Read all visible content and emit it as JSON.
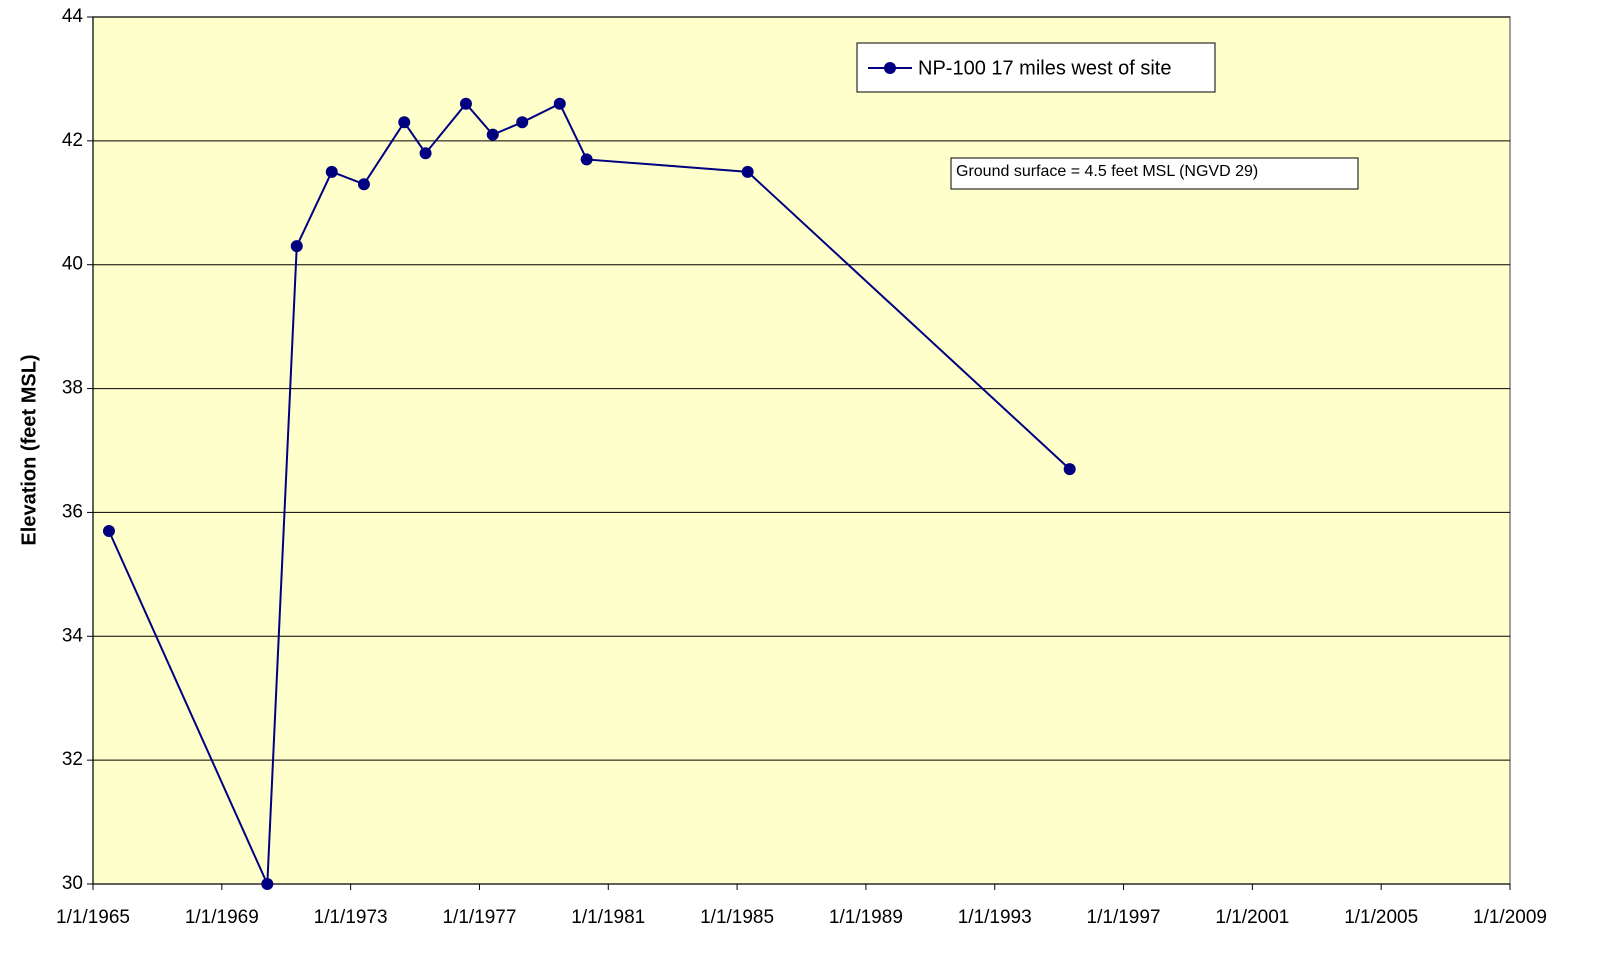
{
  "chart_data": {
    "type": "line",
    "y_label": "Elevation (feet MSL)",
    "x": [
      "7/1/1965",
      "6/1/1970",
      "5/1/1971",
      "6/1/1972",
      "6/1/1973",
      "9/1/1974",
      "5/1/1975",
      "8/1/1976",
      "6/1/1977",
      "5/1/1978",
      "7/1/1979",
      "5/1/1980",
      "5/1/1985",
      "5/1/1995"
    ],
    "series": [
      {
        "name": "NP-100 17 miles west of site",
        "color": "#000080",
        "values": [
          35.7,
          30,
          40.3,
          41.5,
          41.3,
          42.3,
          41.8,
          42.6,
          42.1,
          42.3,
          42.6,
          41.7,
          41.5,
          36.7
        ]
      }
    ],
    "xlim": [
      "1/1/1965",
      "1/1/2009"
    ],
    "xticks": [
      "1/1/1965",
      "1/1/1969",
      "1/1/1973",
      "1/1/1977",
      "1/1/1981",
      "1/1/1985",
      "1/1/1989",
      "1/1/1993",
      "1/1/1997",
      "1/1/2001",
      "1/1/2005",
      "1/1/2009"
    ],
    "ylim": [
      30,
      44
    ],
    "yticks": [
      30,
      32,
      34,
      36,
      38,
      40,
      42,
      44
    ],
    "grid": true,
    "legend": "top-right",
    "plot_background": "#ffffcc",
    "annotations": [
      {
        "text": "Ground surface = 4.5 feet MSL (NGVD 29)"
      }
    ]
  }
}
